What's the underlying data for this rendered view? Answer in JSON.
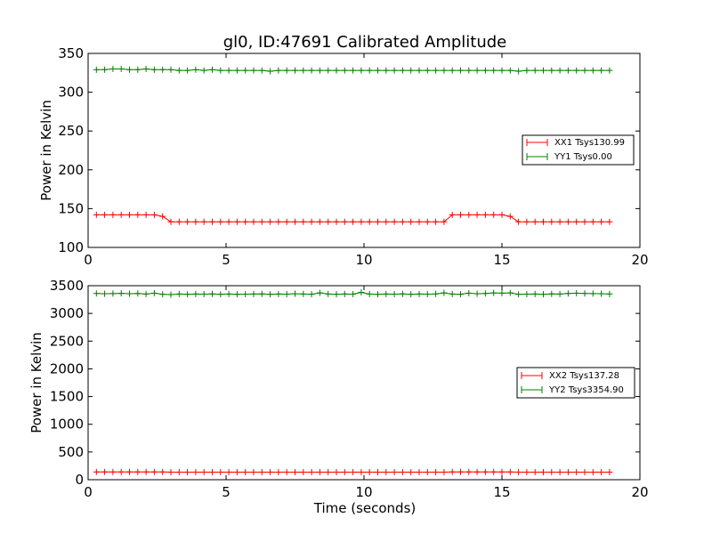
{
  "colors": {
    "xx": "#ff0000",
    "yy": "#008000"
  },
  "chart_data": [
    {
      "type": "line",
      "title": "gl0, ID:47691 Calibrated Amplitude",
      "xlabel": "",
      "ylabel": "Power in Kelvin",
      "xlim": [
        0,
        20
      ],
      "ylim": [
        100,
        350
      ],
      "xticks": [
        0,
        5,
        10,
        15,
        20
      ],
      "yticks": [
        100,
        150,
        200,
        250,
        300,
        350
      ],
      "legend_position": "right",
      "x": [
        0.3,
        0.6,
        0.9,
        1.2,
        1.5,
        1.8,
        2.1,
        2.4,
        2.7,
        3.0,
        3.3,
        3.6,
        3.9,
        4.2,
        4.5,
        4.8,
        5.1,
        5.4,
        5.7,
        6.0,
        6.3,
        6.6,
        6.9,
        7.2,
        7.5,
        7.8,
        8.1,
        8.4,
        8.7,
        9.0,
        9.3,
        9.6,
        9.9,
        10.2,
        10.5,
        10.8,
        11.1,
        11.4,
        11.7,
        12.0,
        12.3,
        12.6,
        12.9,
        13.2,
        13.5,
        13.8,
        14.1,
        14.4,
        14.7,
        15.0,
        15.3,
        15.6,
        15.9,
        16.2,
        16.5,
        16.8,
        17.1,
        17.4,
        17.7,
        18.0,
        18.3,
        18.6,
        18.9
      ],
      "series": [
        {
          "name": "XX1 Tsys130.99",
          "color_key": "xx",
          "values": [
            142,
            142,
            142,
            142,
            142,
            142,
            142,
            142,
            140,
            133,
            133,
            133,
            133,
            133,
            133,
            133,
            133,
            133,
            133,
            133,
            133,
            133,
            133,
            133,
            133,
            133,
            133,
            133,
            133,
            133,
            133,
            133,
            133,
            133,
            133,
            133,
            133,
            133,
            133,
            133,
            133,
            133,
            133,
            142,
            142,
            142,
            142,
            142,
            142,
            142,
            140,
            133,
            133,
            133,
            133,
            133,
            133,
            133,
            133,
            133,
            133,
            133,
            133
          ]
        },
        {
          "name": "YY1 Tsys0.00",
          "color_key": "yy",
          "values": [
            329,
            329,
            330,
            330,
            329,
            329,
            330,
            329,
            329,
            329,
            328,
            328,
            329,
            328,
            329,
            328,
            328,
            328,
            328,
            328,
            328,
            327,
            328,
            328,
            328,
            328,
            328,
            328,
            328,
            328,
            328,
            328,
            328,
            328,
            328,
            328,
            328,
            328,
            328,
            328,
            328,
            328,
            328,
            328,
            328,
            328,
            328,
            328,
            328,
            328,
            328,
            327,
            328,
            328,
            328,
            328,
            328,
            328,
            328,
            328,
            328,
            328,
            328
          ]
        }
      ]
    },
    {
      "type": "line",
      "title": "",
      "xlabel": "Time (seconds)",
      "ylabel": "Power in Kelvin",
      "xlim": [
        0,
        20
      ],
      "ylim": [
        0,
        3500
      ],
      "xticks": [
        0,
        5,
        10,
        15,
        20
      ],
      "yticks": [
        0,
        500,
        1000,
        1500,
        2000,
        2500,
        3000,
        3500
      ],
      "legend_position": "right",
      "x": [
        0.3,
        0.6,
        0.9,
        1.2,
        1.5,
        1.8,
        2.1,
        2.4,
        2.7,
        3.0,
        3.3,
        3.6,
        3.9,
        4.2,
        4.5,
        4.8,
        5.1,
        5.4,
        5.7,
        6.0,
        6.3,
        6.6,
        6.9,
        7.2,
        7.5,
        7.8,
        8.1,
        8.4,
        8.7,
        9.0,
        9.3,
        9.6,
        9.9,
        10.2,
        10.5,
        10.8,
        11.1,
        11.4,
        11.7,
        12.0,
        12.3,
        12.6,
        12.9,
        13.2,
        13.5,
        13.8,
        14.1,
        14.4,
        14.7,
        15.0,
        15.3,
        15.6,
        15.9,
        16.2,
        16.5,
        16.8,
        17.1,
        17.4,
        17.7,
        18.0,
        18.3,
        18.6,
        18.9
      ],
      "series": [
        {
          "name": "XX2 Tsys137.28",
          "color_key": "xx",
          "values": [
            140,
            140,
            140,
            140,
            140,
            140,
            140,
            140,
            140,
            137,
            137,
            137,
            137,
            137,
            137,
            137,
            137,
            137,
            137,
            137,
            137,
            137,
            137,
            137,
            137,
            137,
            137,
            137,
            137,
            137,
            137,
            137,
            137,
            137,
            137,
            137,
            137,
            137,
            137,
            137,
            137,
            137,
            137,
            140,
            140,
            140,
            140,
            140,
            140,
            140,
            140,
            137,
            137,
            137,
            137,
            137,
            137,
            137,
            137,
            137,
            137,
            137,
            137
          ]
        },
        {
          "name": "YY2 Tsys3354.90",
          "color_key": "yy",
          "values": [
            3360,
            3355,
            3358,
            3362,
            3355,
            3360,
            3350,
            3365,
            3345,
            3340,
            3350,
            3345,
            3350,
            3348,
            3352,
            3345,
            3350,
            3345,
            3348,
            3350,
            3352,
            3345,
            3350,
            3348,
            3355,
            3350,
            3345,
            3370,
            3350,
            3345,
            3350,
            3348,
            3380,
            3350,
            3345,
            3350,
            3348,
            3352,
            3345,
            3350,
            3348,
            3352,
            3370,
            3350,
            3345,
            3365,
            3355,
            3360,
            3370,
            3365,
            3370,
            3345,
            3348,
            3350,
            3345,
            3352,
            3350,
            3360,
            3365,
            3360,
            3358,
            3355,
            3350
          ]
        }
      ]
    }
  ]
}
